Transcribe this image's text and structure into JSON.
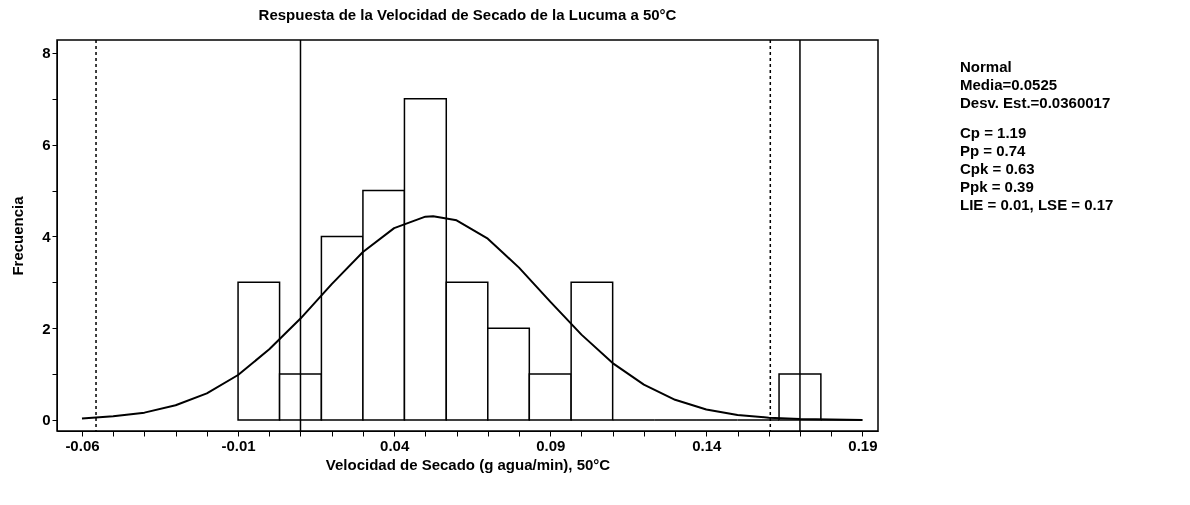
{
  "chart_data": {
    "type": "histogram",
    "title": "Respuesta de la Velocidad de Secado de la Lucuma a 50°C",
    "xlabel": "Velocidad de Secado (g agua/min), 50°C",
    "ylabel": "Frecuencia",
    "bins": [
      -0.01,
      0.0033,
      0.0167,
      0.03,
      0.0433,
      0.0567,
      0.07,
      0.0833,
      0.0967,
      0.11,
      0.1233,
      0.1367,
      0.15,
      0.1633,
      0.1767,
      0.19
    ],
    "values": [
      3,
      1,
      4,
      5,
      7,
      3,
      2,
      1,
      3,
      0,
      0,
      0,
      0,
      1,
      0
    ],
    "color": "#000000",
    "series": [
      {
        "type": "line",
        "color": "#000000",
        "x": [
          -0.06,
          -0.05,
          -0.04,
          -0.03,
          -0.02,
          -0.01,
          0.0,
          0.01,
          0.02,
          0.03,
          0.04,
          0.05,
          0.0525,
          0.06,
          0.07,
          0.08,
          0.09,
          0.1,
          0.11,
          0.12,
          0.13,
          0.14,
          0.15,
          0.16,
          0.17,
          0.18,
          0.19
        ],
        "values": [
          0.03,
          0.08,
          0.16,
          0.32,
          0.58,
          0.98,
          1.54,
          2.21,
          2.96,
          3.66,
          4.18,
          4.43,
          4.44,
          4.35,
          3.95,
          3.32,
          2.58,
          1.86,
          1.24,
          0.77,
          0.44,
          0.23,
          0.11,
          0.05,
          0.02,
          0.01,
          0.0
        ]
      }
    ],
    "xlim": [
      -0.068,
      0.195
    ],
    "ylim": [
      -0.24,
      8.28
    ],
    "xticks": [
      -0.06,
      {
        "value": -0.05,
        "label": null
      },
      {
        "value": -0.04,
        "label": null
      },
      {
        "value": -0.03,
        "label": null
      },
      {
        "value": -0.02,
        "label": null
      },
      -0.01,
      {
        "value": 0.0,
        "label": null
      },
      {
        "value": 0.01,
        "label": null
      },
      {
        "value": 0.02,
        "label": null
      },
      {
        "value": 0.03,
        "label": null
      },
      0.04,
      {
        "value": 0.05,
        "label": null
      },
      {
        "value": 0.06,
        "label": null
      },
      {
        "value": 0.07,
        "label": null
      },
      {
        "value": 0.08,
        "label": null
      },
      0.09,
      {
        "value": 0.1,
        "label": null
      },
      {
        "value": 0.11,
        "label": null
      },
      {
        "value": 0.12,
        "label": null
      },
      {
        "value": 0.13,
        "label": null
      },
      0.14,
      {
        "value": 0.15,
        "label": null
      },
      {
        "value": 0.16,
        "label": null
      },
      {
        "value": 0.17,
        "label": null
      },
      {
        "value": 0.18,
        "label": null
      },
      0.19
    ],
    "yticks": [
      0,
      {
        "value": 1,
        "label": null
      },
      2,
      {
        "value": 3,
        "label": null
      },
      4,
      {
        "value": 5,
        "label": null
      },
      6,
      {
        "value": 7,
        "label": null
      },
      8
    ],
    "grid": false,
    "ref_lines": [
      {
        "axis": "x",
        "value": 0.01,
        "color": "#000000",
        "line_style": "solid"
      },
      {
        "axis": "x",
        "value": 0.17,
        "color": "#000000",
        "line_style": "solid"
      },
      {
        "axis": "x",
        "value": -0.0555,
        "color": "#000000",
        "line_style": "dashed"
      },
      {
        "axis": "x",
        "value": 0.1605,
        "color": "#000000",
        "line_style": "dashed"
      }
    ],
    "annotations": [
      "Normal",
      "Media=0.0525",
      "Desv. Est.=0.0360017",
      "Cp = 1.19",
      "Pp = 0.74",
      "Cpk = 0.63",
      "Ppk = 0.39",
      "LIE = 0.01, LSE = 0.17"
    ]
  }
}
